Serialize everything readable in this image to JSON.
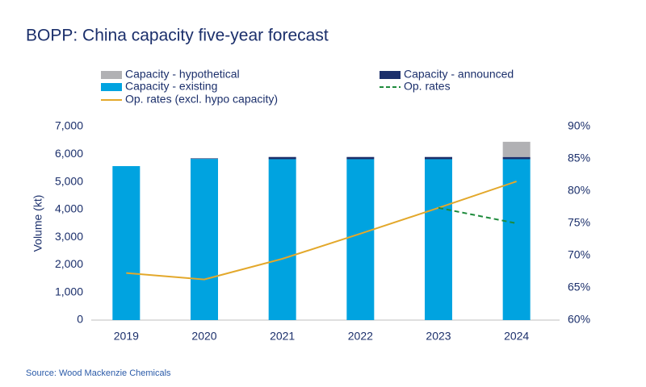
{
  "chart_data": {
    "type": "bar-line",
    "title": "BOPP: China capacity five-year forecast",
    "y_label": "Volume (kt)",
    "source": "Source: Wood Mackenzie Chemicals",
    "categories": [
      "2019",
      "2020",
      "2021",
      "2022",
      "2023",
      "2024"
    ],
    "series": [
      {
        "name": "Capacity - existing",
        "type": "bar",
        "color": "#00a3e0",
        "values": [
          5570,
          5830,
          5820,
          5820,
          5820,
          5820
        ]
      },
      {
        "name": "Capacity - announced",
        "type": "bar",
        "color": "#1b2f6b",
        "values": [
          0,
          20,
          80,
          80,
          80,
          80
        ]
      },
      {
        "name": "Capacity - hypothetical",
        "type": "bar",
        "color": "#b1b1b4",
        "values": [
          0,
          0,
          0,
          0,
          0,
          550
        ]
      },
      {
        "name": "Op. rates (excl. hypo capacity)",
        "type": "line",
        "axis": "y2",
        "color": "#e3a82b",
        "values": [
          67.3,
          66.3,
          69.5,
          73.4,
          77.4,
          81.5
        ]
      },
      {
        "name": "Op. rates",
        "type": "line",
        "axis": "y2",
        "color": "#1e8b3c",
        "dash": true,
        "values": [
          null,
          null,
          null,
          null,
          77.4,
          75.0
        ]
      }
    ],
    "ylim": [
      0,
      7000
    ],
    "yticks": [
      0,
      {
        "value": 1000,
        "label": "1,000"
      },
      {
        "value": 2000,
        "label": "2,000"
      },
      {
        "value": 3000,
        "label": "3,000"
      },
      {
        "value": 4000,
        "label": "4,000"
      },
      {
        "value": 5000,
        "label": "5,000"
      },
      {
        "value": 6000,
        "label": "6,000"
      },
      {
        "value": 7000,
        "label": "7,000"
      }
    ],
    "y2lim": [
      60,
      90
    ],
    "y2ticks": [
      {
        "value": 60,
        "label": "60%"
      },
      {
        "value": 65,
        "label": "65%"
      },
      {
        "value": 70,
        "label": "70%"
      },
      {
        "value": 75,
        "label": "75%"
      },
      {
        "value": 80,
        "label": "80%"
      },
      {
        "value": 85,
        "label": "85%"
      },
      {
        "value": 90,
        "label": "90%"
      }
    ],
    "grid": false
  }
}
